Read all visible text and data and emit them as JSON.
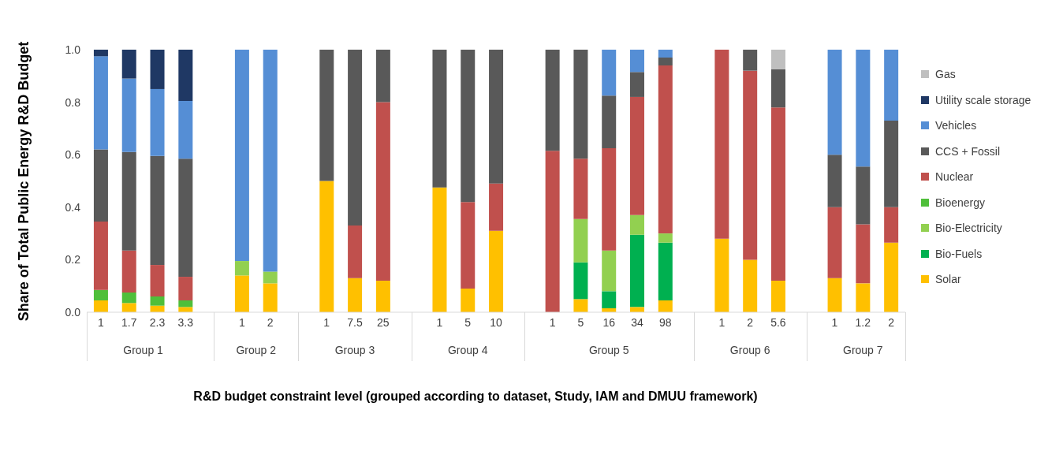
{
  "chart_data": {
    "type": "bar",
    "stacked": true,
    "xlabel": "R&D budget constraint level (grouped according to dataset, Study, IAM and DMUU framework)",
    "ylabel": "Share of Total Public Energy R&D Budget",
    "categories": [
      "1",
      "1.7",
      "2.3",
      "3.3",
      null,
      "1",
      "2",
      null,
      "1",
      "7.5",
      "25",
      null,
      "1",
      "5",
      "10",
      null,
      "1",
      "5",
      "16",
      "34",
      "98",
      null,
      "1",
      "2",
      "5.6",
      null,
      "1",
      "1.2",
      "2"
    ],
    "annotations": [
      "Group 1",
      "Group 2",
      "Group 3",
      "Group 4",
      "Group 5",
      "Group 6",
      "Group 7"
    ],
    "ylim": [
      0,
      1
    ],
    "yticks": [
      {
        "value": 0,
        "label": "0.0"
      },
      {
        "value": 0.2,
        "label": "0.2"
      },
      {
        "value": 0.4,
        "label": "0.4"
      },
      {
        "value": 0.6,
        "label": "0.6"
      },
      {
        "value": 0.8,
        "label": "0.8"
      },
      {
        "value": 1,
        "label": "1.0"
      }
    ],
    "grid": false,
    "legend": "right",
    "series": [
      {
        "name": "Solar",
        "color": "#ffc000",
        "values": [
          0.045,
          0.035,
          0.025,
          0.02,
          null,
          0.14,
          0.11,
          null,
          0.5,
          0.13,
          0.12,
          null,
          0.475,
          0.09,
          0.31,
          null,
          null,
          0.05,
          0.015,
          0.02,
          0.045,
          null,
          0.28,
          0.2,
          0.12,
          null,
          0.13,
          0.11,
          0.265
        ]
      },
      {
        "name": "Bio-Fuels",
        "color": "#00b050",
        "values": [
          null,
          null,
          null,
          null,
          null,
          null,
          null,
          null,
          null,
          null,
          null,
          null,
          null,
          null,
          null,
          null,
          null,
          0.14,
          0.065,
          0.275,
          0.22,
          null,
          null,
          null,
          null,
          null,
          null,
          null,
          null
        ]
      },
      {
        "name": "Bio-Electricity",
        "color": "#92d050",
        "values": [
          null,
          null,
          null,
          null,
          null,
          0.055,
          0.045,
          null,
          null,
          null,
          null,
          null,
          null,
          null,
          null,
          null,
          null,
          0.165,
          0.155,
          0.075,
          0.035,
          null,
          null,
          null,
          null,
          null,
          null,
          null,
          null
        ]
      },
      {
        "name": "Bioenergy",
        "color": "#4fbf3a",
        "values": [
          0.04,
          0.04,
          0.035,
          0.025,
          null,
          null,
          null,
          null,
          null,
          null,
          null,
          null,
          null,
          null,
          null,
          null,
          null,
          null,
          null,
          null,
          null,
          null,
          null,
          null,
          null,
          null,
          null,
          null,
          null
        ]
      },
      {
        "name": "Nuclear",
        "color": "#c0504d",
        "values": [
          0.26,
          0.16,
          0.12,
          0.09,
          null,
          null,
          null,
          null,
          null,
          0.2,
          0.68,
          null,
          null,
          0.33,
          0.18,
          null,
          0.615,
          0.23,
          0.39,
          0.45,
          0.64,
          null,
          0.72,
          0.72,
          0.66,
          null,
          0.27,
          0.225,
          0.135
        ]
      },
      {
        "name": "CCS + Fossil",
        "color": "#595959",
        "values": [
          0.275,
          0.375,
          0.415,
          0.45,
          null,
          null,
          null,
          null,
          0.5,
          0.67,
          0.2,
          null,
          0.525,
          0.58,
          0.51,
          null,
          0.385,
          0.415,
          0.2,
          0.095,
          0.03,
          null,
          null,
          0.08,
          0.145,
          null,
          0.2,
          0.22,
          0.33
        ]
      },
      {
        "name": "Vehicles",
        "color": "#558ed5",
        "values": [
          0.355,
          0.28,
          0.255,
          0.22,
          null,
          0.805,
          0.845,
          null,
          null,
          null,
          null,
          null,
          null,
          null,
          null,
          null,
          null,
          null,
          0.175,
          0.085,
          0.03,
          null,
          null,
          null,
          null,
          null,
          0.4,
          0.445,
          0.27
        ]
      },
      {
        "name": "Utility scale storage",
        "color": "#1f3864",
        "values": [
          0.025,
          0.11,
          0.15,
          0.195,
          null,
          null,
          null,
          null,
          null,
          null,
          null,
          null,
          null,
          null,
          null,
          null,
          null,
          null,
          null,
          null,
          null,
          null,
          null,
          null,
          null,
          null,
          null,
          null,
          null
        ]
      },
      {
        "name": "Gas",
        "color": "#bfbfbf",
        "values": [
          null,
          null,
          null,
          null,
          null,
          null,
          null,
          null,
          null,
          null,
          null,
          null,
          null,
          null,
          null,
          null,
          null,
          null,
          null,
          null,
          null,
          null,
          null,
          null,
          0.075,
          null,
          null,
          null,
          null
        ]
      }
    ]
  }
}
